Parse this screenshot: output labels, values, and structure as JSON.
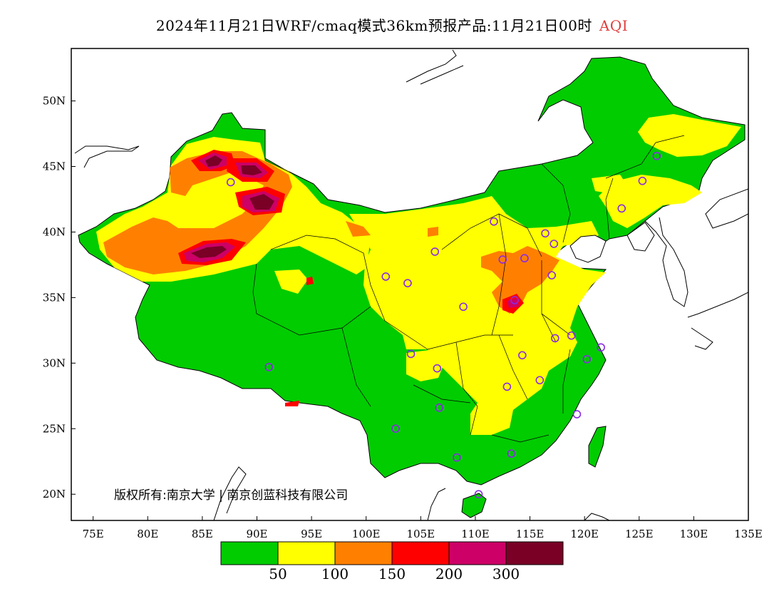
{
  "title": {
    "text": "2024年11月21日WRF/cmaq模式36km预报产品:11月21日00时",
    "variable": "AQI"
  },
  "axes": {
    "x_ticks": [
      "75E",
      "80E",
      "85E",
      "90E",
      "95E",
      "100E",
      "105E",
      "110E",
      "115E",
      "120E",
      "125E",
      "130E",
      "135E"
    ],
    "y_ticks": [
      "50N",
      "45N",
      "40N",
      "35N",
      "30N",
      "25N",
      "20N"
    ]
  },
  "copyright": "版权所有:南京大学 | 南京创蓝科技有限公司",
  "legend": {
    "colors": [
      "#00cc00",
      "#ffff00",
      "#ff8000",
      "#ff0000",
      "#cc0066",
      "#7a0026"
    ],
    "labels": [
      "50",
      "100",
      "150",
      "200",
      "300"
    ],
    "meaning": [
      "0-50",
      "50-100",
      "100-150",
      "150-200",
      "200-300",
      ">300"
    ]
  },
  "colors": {
    "good": "#00cc00",
    "moderate": "#ffff00",
    "usg": "#ff8000",
    "unhealthy": "#ff0000",
    "very_unhealthy": "#cc0066",
    "hazardous": "#7a0026",
    "station_marker": "#8a2be2"
  },
  "map_data": {
    "extent": {
      "lon": [
        73,
        135
      ],
      "lat": [
        18,
        54
      ]
    },
    "stations": [
      [
        87.6,
        43.8
      ],
      [
        91.1,
        29.7
      ],
      [
        101.8,
        36.6
      ],
      [
        103.8,
        36.1
      ],
      [
        106.3,
        38.5
      ],
      [
        111.7,
        40.8
      ],
      [
        116.4,
        39.9
      ],
      [
        117.2,
        39.1
      ],
      [
        114.5,
        38.0
      ],
      [
        112.5,
        37.9
      ],
      [
        113.6,
        34.8
      ],
      [
        117.0,
        36.7
      ],
      [
        108.9,
        34.3
      ],
      [
        117.3,
        31.9
      ],
      [
        118.8,
        32.1
      ],
      [
        120.2,
        30.3
      ],
      [
        121.5,
        31.2
      ],
      [
        114.3,
        30.6
      ],
      [
        112.9,
        28.2
      ],
      [
        115.9,
        28.7
      ],
      [
        119.3,
        26.1
      ],
      [
        113.3,
        23.1
      ],
      [
        108.3,
        22.8
      ],
      [
        110.3,
        20.0
      ],
      [
        106.7,
        26.6
      ],
      [
        102.7,
        25.0
      ],
      [
        104.1,
        30.7
      ],
      [
        106.5,
        29.6
      ],
      [
        123.4,
        41.8
      ],
      [
        125.3,
        43.9
      ],
      [
        126.6,
        45.8
      ]
    ]
  }
}
